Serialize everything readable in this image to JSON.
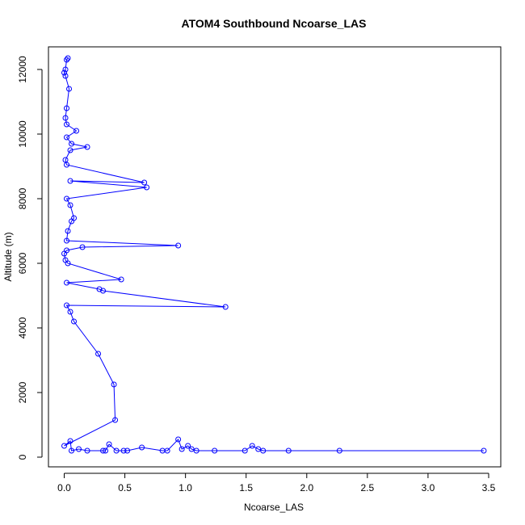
{
  "chart_data": {
    "type": "line",
    "title": "ATOM4 Southbound Ncoarse_LAS",
    "xlabel": "Ncoarse_LAS",
    "ylabel": "Altitude (m)",
    "xlim": [
      -0.13,
      3.6
    ],
    "ylim": [
      -300,
      12700
    ],
    "x_ticks": [
      "0.0",
      "0.5",
      "1.0",
      "1.5",
      "2.0",
      "2.5",
      "3.0",
      "3.5"
    ],
    "y_ticks": [
      "0",
      "2000",
      "4000",
      "6000",
      "8000",
      "10000",
      "12000"
    ],
    "grid": false,
    "legend": "none",
    "colors": {
      "series": "#0000ff",
      "frame": "#000000"
    },
    "series": [
      {
        "points": [
          [
            0.03,
            12350
          ],
          [
            0.02,
            12300
          ],
          [
            0.01,
            12000
          ],
          [
            0.0,
            11900
          ],
          [
            0.01,
            11800
          ],
          [
            0.04,
            11400
          ],
          [
            0.02,
            10800
          ],
          [
            0.01,
            10500
          ],
          [
            0.02,
            10300
          ],
          [
            0.1,
            10100
          ],
          [
            0.02,
            9900
          ],
          [
            0.06,
            9700
          ],
          [
            0.19,
            9600
          ],
          [
            0.05,
            9500
          ],
          [
            0.01,
            9200
          ],
          [
            0.02,
            9050
          ],
          [
            0.66,
            8500
          ],
          [
            0.05,
            8550
          ],
          [
            0.68,
            8350
          ],
          [
            0.02,
            8000
          ],
          [
            0.05,
            7800
          ],
          [
            0.08,
            7400
          ],
          [
            0.06,
            7300
          ],
          [
            0.03,
            7000
          ],
          [
            0.02,
            6700
          ],
          [
            0.94,
            6550
          ],
          [
            0.15,
            6500
          ],
          [
            0.02,
            6400
          ],
          [
            0.0,
            6300
          ],
          [
            0.01,
            6100
          ],
          [
            0.03,
            6000
          ],
          [
            0.47,
            5500
          ],
          [
            0.02,
            5400
          ],
          [
            0.29,
            5200
          ],
          [
            0.32,
            5150
          ],
          [
            1.33,
            4650
          ],
          [
            0.02,
            4700
          ],
          [
            0.05,
            4500
          ],
          [
            0.08,
            4200
          ],
          [
            0.28,
            3200
          ],
          [
            0.41,
            2250
          ],
          [
            0.42,
            1150
          ],
          [
            0.0,
            350
          ],
          [
            0.05,
            500
          ],
          [
            0.06,
            200
          ],
          [
            0.12,
            250
          ],
          [
            0.19,
            200
          ],
          [
            0.32,
            200
          ],
          [
            0.34,
            200
          ],
          [
            0.37,
            400
          ],
          [
            0.43,
            200
          ],
          [
            0.49,
            200
          ],
          [
            0.52,
            200
          ],
          [
            0.64,
            300
          ],
          [
            0.81,
            200
          ],
          [
            0.85,
            200
          ],
          [
            0.94,
            550
          ],
          [
            0.97,
            250
          ],
          [
            1.02,
            350
          ],
          [
            1.05,
            250
          ],
          [
            1.09,
            200
          ],
          [
            1.24,
            200
          ],
          [
            1.49,
            200
          ],
          [
            1.55,
            350
          ],
          [
            1.6,
            250
          ],
          [
            1.64,
            200
          ],
          [
            1.85,
            200
          ],
          [
            2.27,
            200
          ],
          [
            3.46,
            200
          ]
        ]
      }
    ]
  }
}
